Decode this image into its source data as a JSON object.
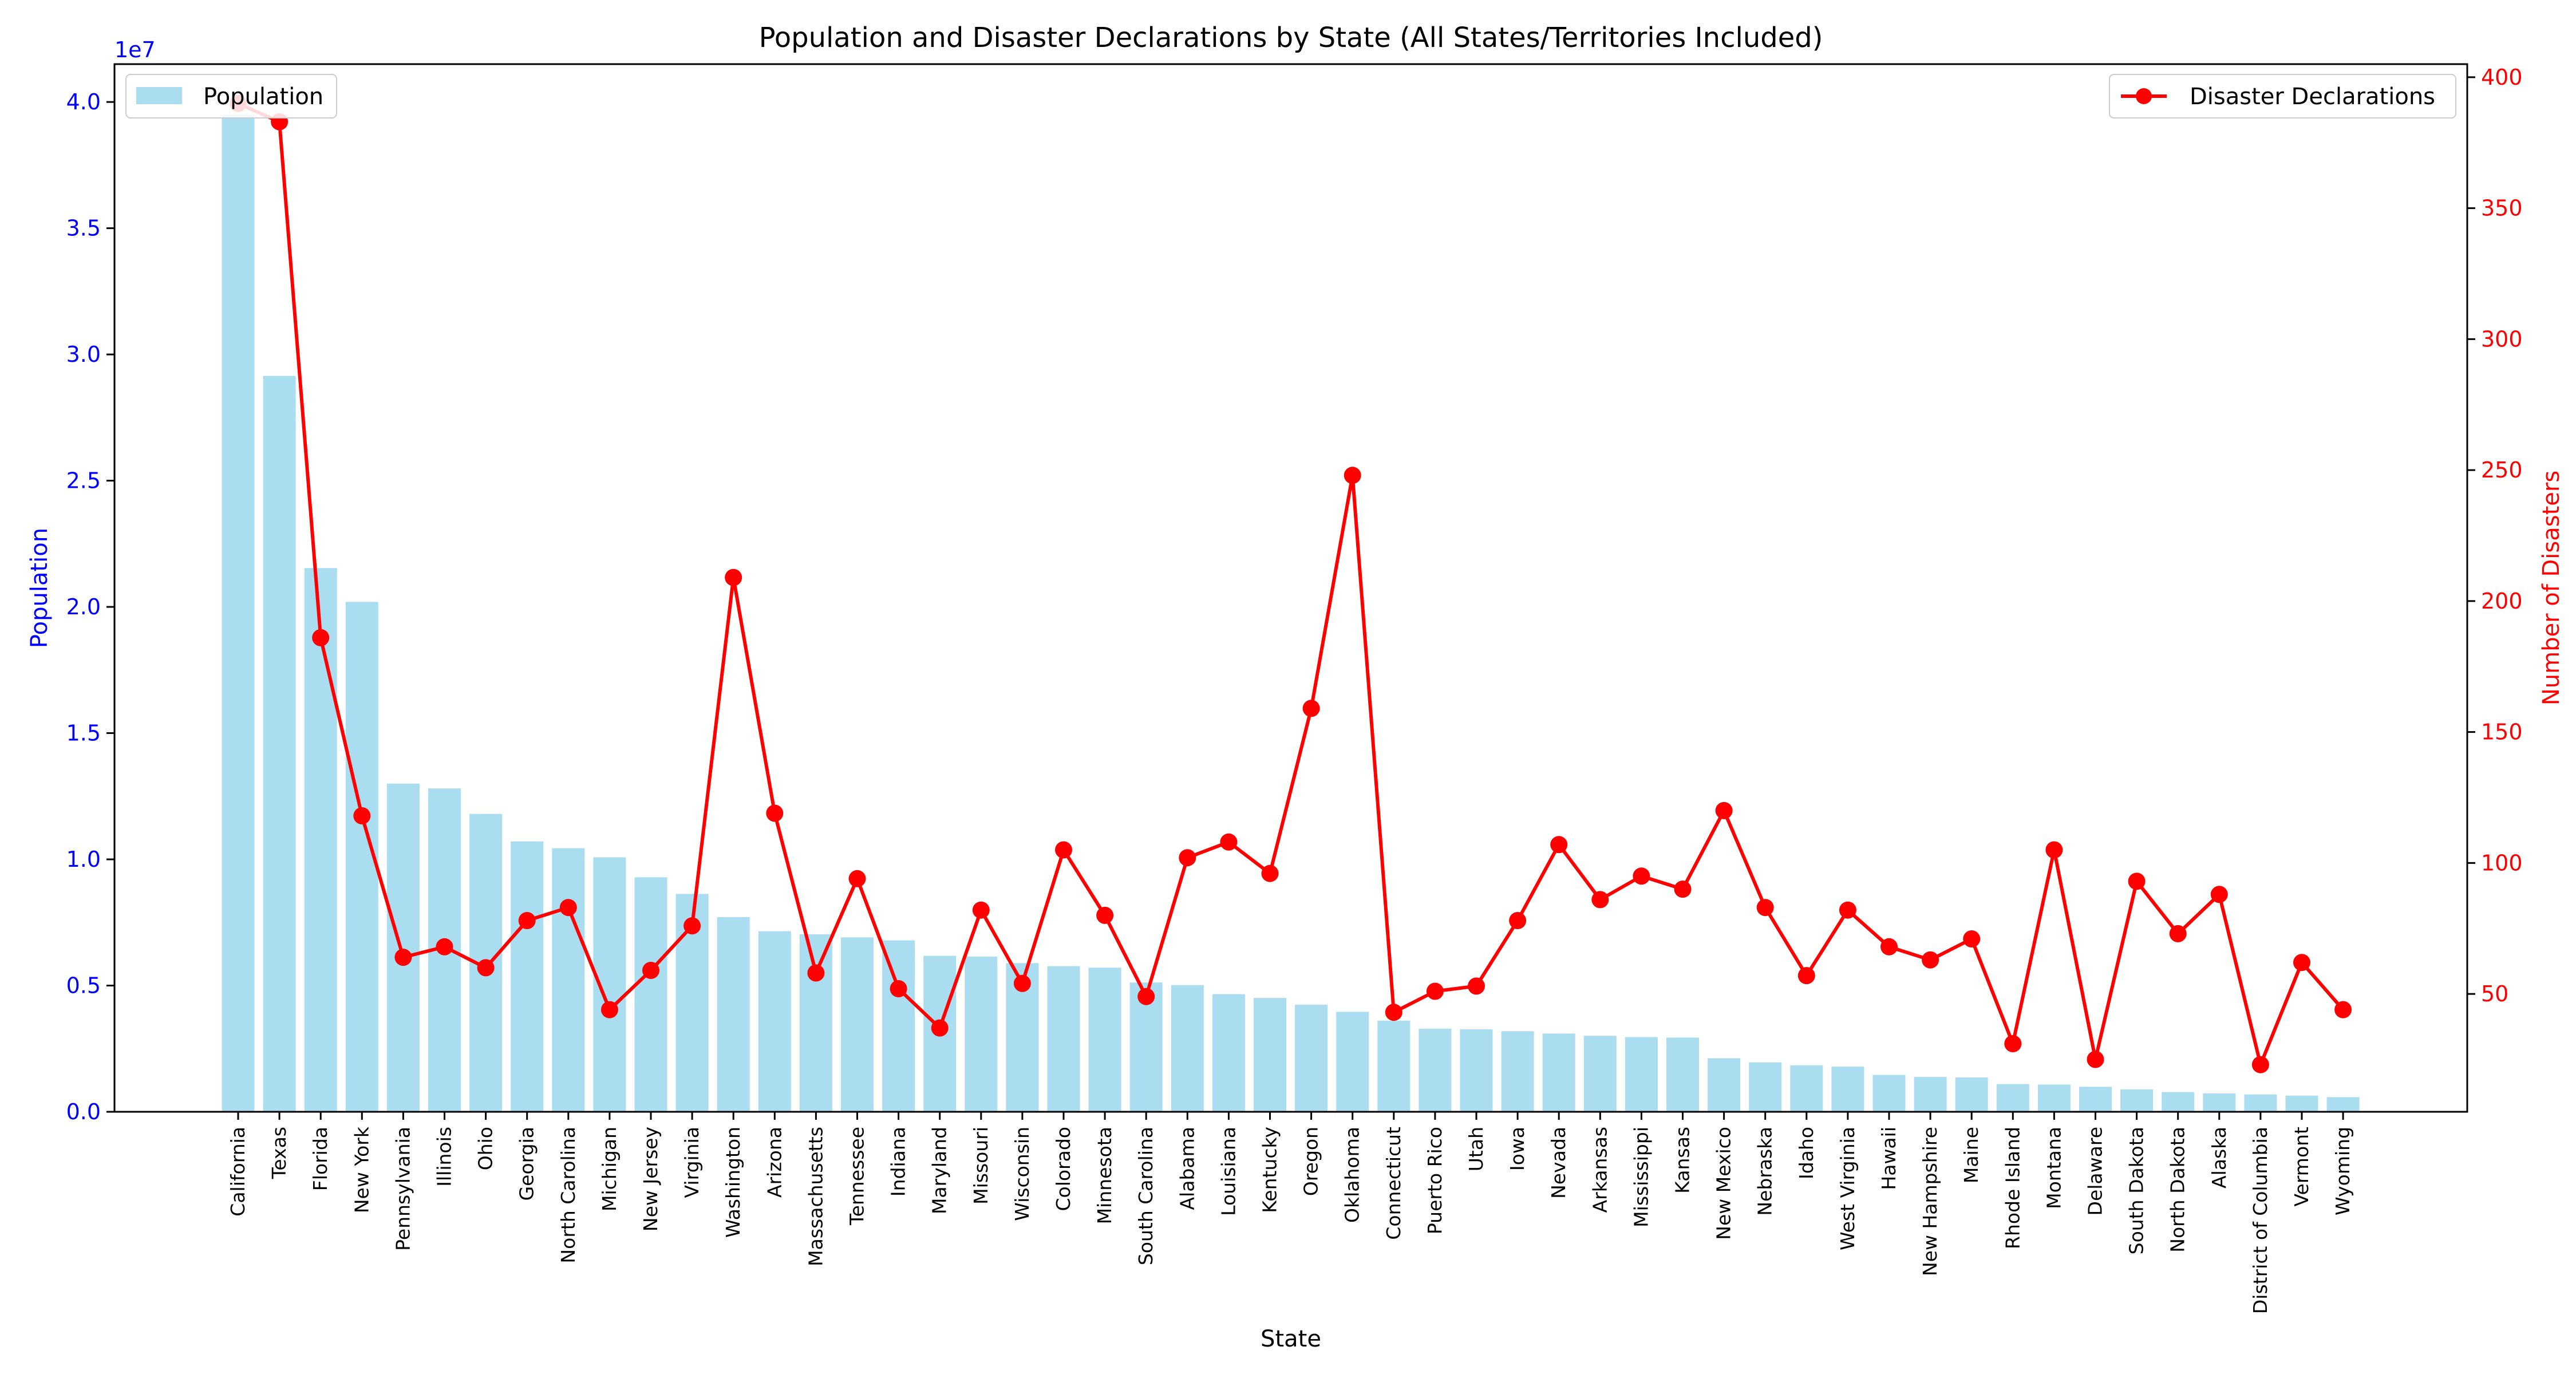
{
  "colors": {
    "bar": "#87ceeb",
    "line": "#ff0000",
    "left_axis": "#0000ff",
    "right_axis": "#ff0000"
  },
  "chart_data": {
    "type": "bar",
    "title": "Population and Disaster Declarations by State (All States/Territories Included)",
    "xlabel": "State",
    "ylabel_left": "Population",
    "ylabel_right": "Number of Disasters",
    "left_offset_label": "1e7",
    "ylim_left": [
      0,
      41500000
    ],
    "ylim_right": [
      5,
      405
    ],
    "left_ticks": [
      0,
      5000000,
      10000000,
      15000000,
      20000000,
      25000000,
      30000000,
      35000000,
      40000000
    ],
    "left_tick_labels": [
      "0.0",
      "0.5",
      "1.0",
      "1.5",
      "2.0",
      "2.5",
      "3.0",
      "3.5",
      "4.0"
    ],
    "right_ticks": [
      50,
      100,
      150,
      200,
      250,
      300,
      350,
      400
    ],
    "right_tick_labels": [
      "50",
      "100",
      "150",
      "200",
      "250",
      "300",
      "350",
      "400"
    ],
    "legend_left": "Population",
    "legend_right": "Disaster Declarations",
    "grid": false,
    "categories": [
      "California",
      "Texas",
      "Florida",
      "New York",
      "Pennsylvania",
      "Illinois",
      "Ohio",
      "Georgia",
      "North Carolina",
      "Michigan",
      "New Jersey",
      "Virginia",
      "Washington",
      "Arizona",
      "Massachusetts",
      "Tennessee",
      "Indiana",
      "Maryland",
      "Missouri",
      "Wisconsin",
      "Colorado",
      "Minnesota",
      "South Carolina",
      "Alabama",
      "Louisiana",
      "Kentucky",
      "Oregon",
      "Oklahoma",
      "Connecticut",
      "Puerto Rico",
      "Utah",
      "Iowa",
      "Nevada",
      "Arkansas",
      "Mississippi",
      "Kansas",
      "New Mexico",
      "Nebraska",
      "Idaho",
      "West Virginia",
      "Hawaii",
      "New Hampshire",
      "Maine",
      "Rhode Island",
      "Montana",
      "Delaware",
      "South Dakota",
      "North Dakota",
      "Alaska",
      "District of Columbia",
      "Vermont",
      "Wyoming"
    ],
    "series": [
      {
        "name": "Population",
        "type": "bar",
        "axis": "left",
        "values": [
          39500000,
          29150000,
          21540000,
          20200000,
          13000000,
          12810000,
          11800000,
          10710000,
          10440000,
          10080000,
          9290000,
          8630000,
          7710000,
          7150000,
          7030000,
          6910000,
          6790000,
          6180000,
          6150000,
          5890000,
          5770000,
          5710000,
          5120000,
          5020000,
          4660000,
          4510000,
          4240000,
          3960000,
          3610000,
          3290000,
          3270000,
          3190000,
          3100000,
          3010000,
          2960000,
          2940000,
          2120000,
          1960000,
          1840000,
          1790000,
          1460000,
          1380000,
          1360000,
          1100000,
          1080000,
          990000,
          890000,
          780000,
          730000,
          690000,
          640000,
          580000
        ]
      },
      {
        "name": "Disaster Declarations",
        "type": "line",
        "axis": "right",
        "values": [
          390,
          383,
          186,
          118,
          64,
          68,
          60,
          78,
          83,
          44,
          59,
          76,
          209,
          119,
          58,
          94,
          52,
          37,
          82,
          54,
          105,
          80,
          49,
          102,
          108,
          96,
          159,
          248,
          43,
          51,
          53,
          78,
          107,
          86,
          95,
          90,
          120,
          83,
          57,
          82,
          68,
          63,
          71,
          31,
          105,
          25,
          93,
          73,
          88,
          23,
          62,
          44
        ]
      }
    ]
  }
}
